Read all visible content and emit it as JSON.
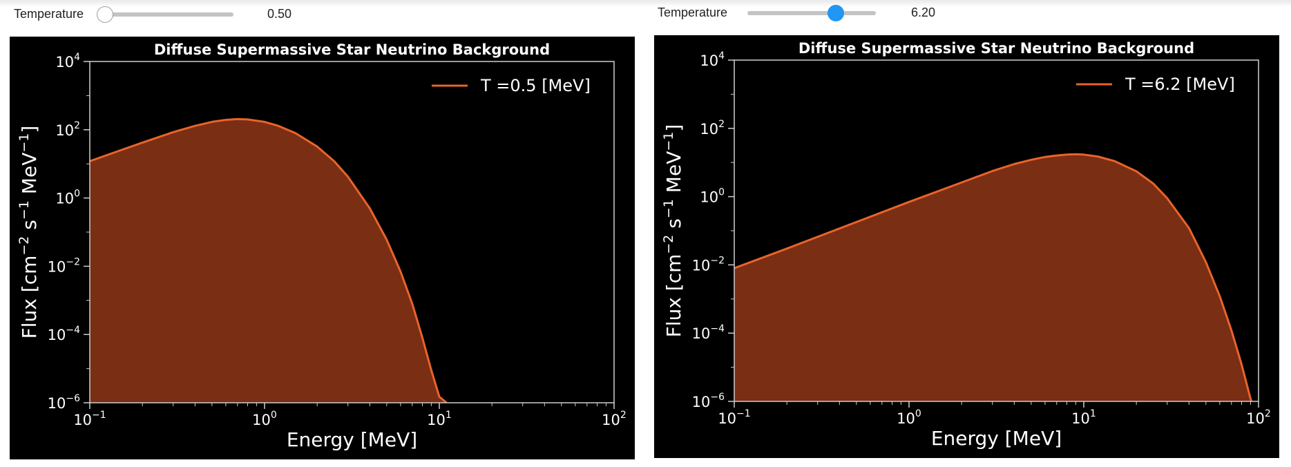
{
  "panels": [
    {
      "control": {
        "label": "Temperature",
        "value_text": "0.50",
        "min": 0,
        "max": 10,
        "value": 0.5
      },
      "chart": {
        "title": "Diffuse Supermassive Star Neutrino Background",
        "xlabel": "Energy  [MeV]",
        "ylabel": "Flux  [cm−2 s−1 MeV−1]",
        "legend": "T =0.5 [MeV]"
      }
    },
    {
      "control": {
        "label": "Temperature",
        "value_text": "6.20",
        "min": 0,
        "max": 10,
        "value": 6.2
      },
      "chart": {
        "title": "Diffuse Supermassive Star Neutrino Background",
        "xlabel": "Energy  [MeV]",
        "ylabel": "Flux  [cm−2 s−1 MeV−1]",
        "legend": "T =6.2 [MeV]"
      }
    }
  ],
  "colors": {
    "line": "#e8642a",
    "fill": "#7a2e14",
    "axes": "#cfcfcf",
    "background": "#000000"
  },
  "chart_data": [
    {
      "type": "area",
      "title": "Diffuse Supermassive Star Neutrino Background",
      "xlabel": "Energy  [MeV]",
      "ylabel": "Flux  [cm⁻² s⁻¹ MeV⁻¹]",
      "xscale": "log",
      "yscale": "log",
      "xlim": [
        0.1,
        100
      ],
      "ylim": [
        1e-06,
        10000
      ],
      "xticks": [
        {
          "base": "10",
          "exp": "−1"
        },
        {
          "base": "10",
          "exp": "0"
        },
        {
          "base": "10",
          "exp": "1"
        },
        {
          "base": "10",
          "exp": "2"
        }
      ],
      "yticks": [
        {
          "base": "10",
          "exp": "−6"
        },
        {
          "base": "10",
          "exp": "−4"
        },
        {
          "base": "10",
          "exp": "−2"
        },
        {
          "base": "10",
          "exp": "0"
        },
        {
          "base": "10",
          "exp": "2"
        },
        {
          "base": "10",
          "exp": "4"
        }
      ],
      "legend_position": "top-right",
      "series": [
        {
          "name": "T =0.5 [MeV]",
          "x": [
            0.1,
            0.15,
            0.2,
            0.3,
            0.4,
            0.5,
            0.6,
            0.7,
            0.8,
            1.0,
            1.2,
            1.5,
            2,
            2.5,
            3,
            4,
            5,
            6,
            7,
            8,
            9,
            10,
            11
          ],
          "y": [
            12,
            25,
            42,
            85,
            130,
            170,
            195,
            205,
            200,
            170,
            130,
            80,
            32,
            12,
            4.2,
            0.5,
            0.06,
            0.007,
            0.0008,
            8e-05,
            9e-06,
            1.5e-06,
            1e-06
          ]
        }
      ]
    },
    {
      "type": "area",
      "title": "Diffuse Supermassive Star Neutrino Background",
      "xlabel": "Energy  [MeV]",
      "ylabel": "Flux  [cm⁻² s⁻¹ MeV⁻¹]",
      "xscale": "log",
      "yscale": "log",
      "xlim": [
        0.1,
        100
      ],
      "ylim": [
        1e-06,
        10000
      ],
      "xticks": [
        {
          "base": "10",
          "exp": "−1"
        },
        {
          "base": "10",
          "exp": "0"
        },
        {
          "base": "10",
          "exp": "1"
        },
        {
          "base": "10",
          "exp": "2"
        }
      ],
      "yticks": [
        {
          "base": "10",
          "exp": "−6"
        },
        {
          "base": "10",
          "exp": "−4"
        },
        {
          "base": "10",
          "exp": "−2"
        },
        {
          "base": "10",
          "exp": "0"
        },
        {
          "base": "10",
          "exp": "2"
        },
        {
          "base": "10",
          "exp": "4"
        }
      ],
      "legend_position": "top-right",
      "series": [
        {
          "name": "T =6.2 [MeV]",
          "x": [
            0.1,
            0.2,
            0.5,
            1,
            2,
            3,
            4,
            5,
            6,
            7,
            8,
            9,
            10,
            12,
            15,
            20,
            25,
            30,
            40,
            50,
            60,
            70,
            80,
            90,
            100
          ],
          "y": [
            0.008,
            0.03,
            0.18,
            0.7,
            2.6,
            5.6,
            9,
            12,
            14.5,
            16,
            17,
            17.5,
            17,
            15,
            11,
            5.5,
            2.4,
            0.9,
            0.12,
            0.012,
            0.0012,
            0.00012,
            1.2e-05,
            1.2e-06,
            2.5e-07
          ]
        }
      ]
    }
  ]
}
